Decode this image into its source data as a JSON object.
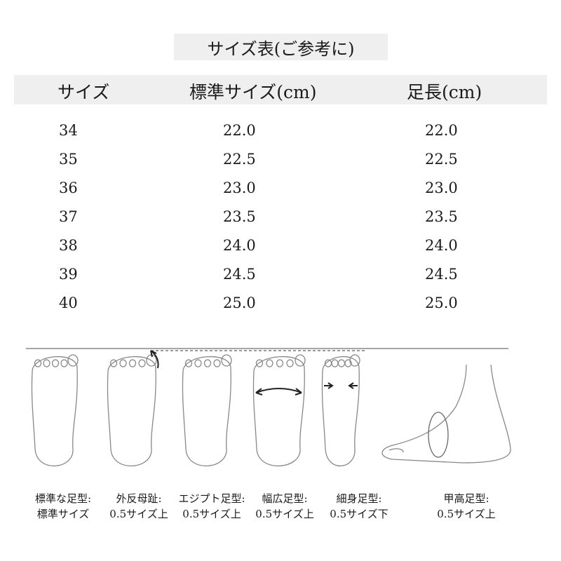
{
  "title": "サイズ表(ご参考に)",
  "table": {
    "headers": [
      "サイズ",
      "標準サイズ(cm)",
      "足長(cm)"
    ],
    "rows": [
      [
        "34",
        "22.0",
        "22.0"
      ],
      [
        "35",
        "22.5",
        "22.5"
      ],
      [
        "36",
        "23.0",
        "23.0"
      ],
      [
        "37",
        "23.5",
        "23.5"
      ],
      [
        "38",
        "24.0",
        "24.0"
      ],
      [
        "39",
        "24.5",
        "24.5"
      ],
      [
        "40",
        "25.0",
        "25.0"
      ]
    ]
  },
  "foot_types": [
    {
      "name": "標準な足型:",
      "note": "標準サイズ"
    },
    {
      "name": "外反母趾:",
      "note": "0.5サイズ上"
    },
    {
      "name": "エジプト足型:",
      "note": "0.5サイズ上"
    },
    {
      "name": "幅広足型:",
      "note": "0.5サイズ上"
    },
    {
      "name": "細身足型:",
      "note": "0.5サイズ下"
    },
    {
      "name": "甲高足型:",
      "note": "0.5サイズ上"
    }
  ]
}
